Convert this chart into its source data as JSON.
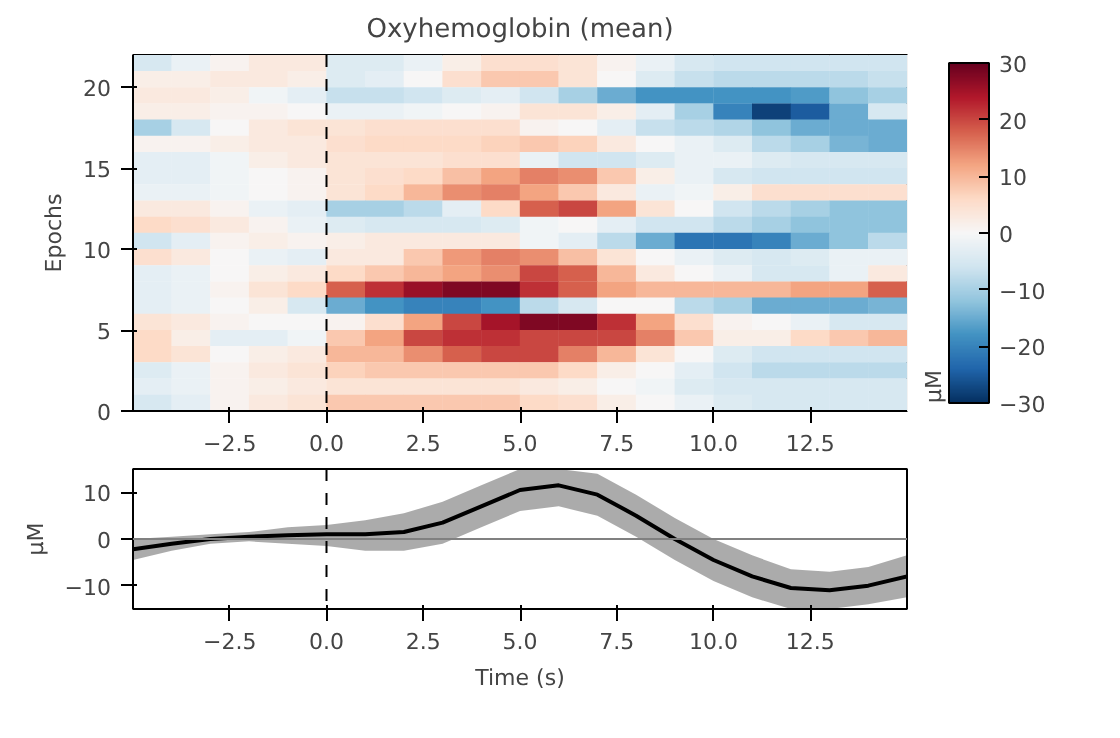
{
  "chart_data": [
    {
      "type": "heatmap",
      "title": "Oxyhemoglobin (mean)",
      "ylabel": "Epochs",
      "clabel": "µM",
      "clim": [
        -30,
        30
      ],
      "cticks": [
        -30,
        -20,
        -10,
        0,
        10,
        20,
        30
      ],
      "x": [
        -4.5,
        -3.5,
        -2.5,
        -1.5,
        -0.5,
        0.5,
        1.5,
        2.5,
        3.5,
        4.5,
        5.5,
        6.5,
        7.5,
        8.5,
        9.5,
        10.5,
        11.5,
        12.5,
        13.5,
        14.5
      ],
      "xlim": [
        -5,
        15
      ],
      "xticks": [
        {
          "value": -2.5,
          "label": "−2.5"
        },
        {
          "value": 0,
          "label": "0.0"
        },
        {
          "value": 2.5,
          "label": "2.5"
        },
        {
          "value": 5,
          "label": "5.0"
        },
        {
          "value": 7.5,
          "label": "7.5"
        },
        {
          "value": 10,
          "label": "10.0"
        },
        {
          "value": 12.5,
          "label": "12.5"
        }
      ],
      "ylim": [
        0,
        22
      ],
      "yticks": [
        0,
        5,
        10,
        15,
        20
      ],
      "grid": false,
      "ref_lines": [
        {
          "axis": "x",
          "value": 0,
          "label": null,
          "color": "#000000",
          "line_style": "dashed"
        }
      ],
      "cells": [
        [
          -5,
          -2,
          1,
          3,
          3,
          -4,
          -4,
          -2,
          2,
          5,
          5,
          4,
          1,
          -2,
          -5,
          -6,
          -6,
          -6,
          -6,
          -6
        ],
        [
          2,
          2,
          3,
          3,
          2,
          -4,
          -3,
          0,
          5,
          8,
          8,
          4,
          0,
          -4,
          -7,
          -8,
          -8,
          -8,
          -8,
          -7
        ],
        [
          3,
          3,
          2,
          -1,
          -3,
          -7,
          -7,
          -6,
          -4,
          -3,
          -6,
          -10,
          -15,
          -18,
          -18,
          -18,
          -18,
          -17,
          -12,
          -10
        ],
        [
          2,
          2,
          1,
          1,
          0,
          -2,
          -2,
          -1,
          0,
          1,
          4,
          4,
          2,
          -3,
          -10,
          -20,
          -28,
          -25,
          -15,
          -5
        ],
        [
          -10,
          -5,
          0,
          3,
          4,
          4,
          5,
          5,
          5,
          5,
          1,
          0,
          -3,
          -7,
          -8,
          -9,
          -12,
          -15,
          -15,
          -15
        ],
        [
          1,
          1,
          2,
          3,
          3,
          5,
          6,
          6,
          6,
          7,
          8,
          7,
          3,
          0,
          -2,
          -4,
          -8,
          -10,
          -14,
          -15
        ],
        [
          -3,
          -3,
          -1,
          2,
          3,
          4,
          4,
          4,
          5,
          5,
          -2,
          -6,
          -6,
          -4,
          -2,
          -2,
          -4,
          -5,
          -5,
          -5
        ],
        [
          -3,
          -3,
          -1,
          0,
          1,
          4,
          5,
          6,
          9,
          12,
          15,
          14,
          8,
          2,
          -2,
          -5,
          -6,
          -6,
          -6,
          -6
        ],
        [
          -2,
          -2,
          -1,
          0,
          1,
          4,
          6,
          10,
          14,
          15,
          12,
          8,
          3,
          -2,
          -1,
          2,
          5,
          5,
          5,
          5
        ],
        [
          3,
          3,
          1,
          -2,
          -3,
          -10,
          -10,
          -8,
          -3,
          6,
          18,
          20,
          12,
          4,
          0,
          -6,
          -8,
          -10,
          -12,
          -12
        ],
        [
          6,
          5,
          3,
          1,
          -2,
          -4,
          -5,
          -5,
          -5,
          -4,
          -1,
          0,
          -3,
          -6,
          -6,
          -8,
          -10,
          -12,
          -12,
          -12
        ],
        [
          -6,
          -3,
          1,
          2,
          1,
          2,
          3,
          3,
          3,
          3,
          -1,
          -3,
          -8,
          -15,
          -22,
          -22,
          -20,
          -15,
          -12,
          -8
        ],
        [
          5,
          3,
          0,
          -2,
          -3,
          3,
          3,
          8,
          13,
          15,
          14,
          9,
          4,
          0,
          -2,
          -4,
          -5,
          -4,
          -2,
          -2
        ],
        [
          -3,
          -2,
          0,
          2,
          3,
          6,
          8,
          10,
          12,
          14,
          20,
          18,
          10,
          3,
          0,
          -2,
          -5,
          -5,
          -2,
          3
        ],
        [
          -3,
          -2,
          1,
          4,
          6,
          18,
          22,
          26,
          28,
          28,
          22,
          18,
          12,
          10,
          10,
          10,
          10,
          12,
          12,
          18
        ],
        [
          -3,
          -2,
          0,
          2,
          -5,
          -15,
          -18,
          -20,
          -20,
          -18,
          -8,
          -5,
          0,
          0,
          -8,
          -10,
          -15,
          -15,
          -15,
          -14
        ],
        [
          4,
          3,
          1,
          0,
          0,
          1,
          5,
          12,
          20,
          25,
          28,
          28,
          22,
          12,
          5,
          1,
          0,
          -2,
          -5,
          -5
        ],
        [
          6,
          2,
          -3,
          -3,
          -1,
          8,
          12,
          20,
          22,
          22,
          20,
          20,
          20,
          15,
          8,
          2,
          2,
          6,
          8,
          10
        ],
        [
          6,
          4,
          0,
          2,
          3,
          10,
          10,
          14,
          18,
          20,
          20,
          15,
          10,
          4,
          0,
          -4,
          -6,
          -6,
          -6,
          -6
        ],
        [
          -4,
          -2,
          1,
          3,
          4,
          7,
          8,
          8,
          8,
          8,
          8,
          6,
          2,
          0,
          -3,
          -6,
          -8,
          -8,
          -8,
          -8
        ],
        [
          -3,
          -2,
          1,
          2,
          3,
          4,
          4,
          4,
          4,
          4,
          3,
          2,
          0,
          -1,
          -4,
          -5,
          -5,
          -5,
          -5,
          -5
        ],
        [
          -5,
          -3,
          1,
          3,
          4,
          8,
          8,
          8,
          8,
          8,
          6,
          5,
          2,
          0,
          -2,
          -4,
          -5,
          -5,
          -5,
          -5
        ]
      ]
    },
    {
      "type": "line",
      "xlabel": "Time (s)",
      "ylabel": "µM",
      "x": [
        -5,
        -4,
        -3,
        -2,
        -1,
        0,
        1,
        2,
        3,
        4,
        5,
        6,
        7,
        8,
        9,
        10,
        11,
        12,
        13,
        14,
        15
      ],
      "xlim": [
        -5,
        15
      ],
      "xticks": [
        {
          "value": -2.5,
          "label": "−2.5"
        },
        {
          "value": 0,
          "label": "0.0"
        },
        {
          "value": 2.5,
          "label": "2.5"
        },
        {
          "value": 5,
          "label": "5.0"
        },
        {
          "value": 7.5,
          "label": "7.5"
        },
        {
          "value": 10,
          "label": "10.0"
        },
        {
          "value": 12.5,
          "label": "12.5"
        }
      ],
      "ylim": [
        -15,
        15
      ],
      "yticks": [
        {
          "value": -10,
          "label": "−10"
        },
        0,
        10
      ],
      "grid": false,
      "marker": "none",
      "line_style": "solid",
      "ref_lines": [
        {
          "axis": "x",
          "value": 0,
          "label": null,
          "color": "#000000",
          "line_style": "dashed"
        },
        {
          "axis": "y",
          "value": 0,
          "label": null,
          "color": "#808080",
          "line_style": "solid"
        }
      ],
      "series": [
        {
          "color": "#000000",
          "values": [
            -2.2,
            -1,
            0,
            0.5,
            0.8,
            1,
            1,
            1.5,
            3.5,
            7,
            10.5,
            11.5,
            9.5,
            5,
            0,
            -4.5,
            -8,
            -10.5,
            -11,
            -10,
            -8
          ],
          "lower": [
            -4.5,
            -2.5,
            -1,
            -0.5,
            -1,
            -1.5,
            -2.5,
            -2.5,
            -1,
            2.5,
            6,
            7,
            5,
            0.5,
            -4.5,
            -9,
            -12.5,
            -15,
            -15,
            -14,
            -12.5
          ],
          "upper": [
            0,
            0.5,
            1,
            1.5,
            2.5,
            3,
            4,
            5.5,
            8,
            11.5,
            15,
            15,
            14,
            9.5,
            4.5,
            0,
            -3.5,
            -6.5,
            -7,
            -6,
            -3.5
          ]
        }
      ]
    }
  ]
}
